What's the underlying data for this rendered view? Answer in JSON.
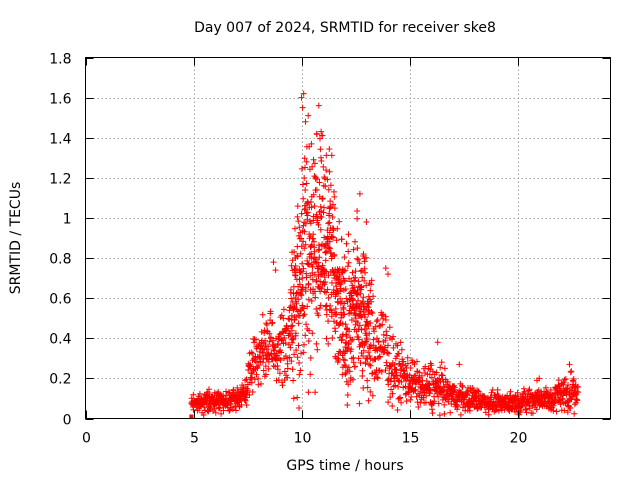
{
  "chart_data": {
    "type": "scatter",
    "title": "Day 007 of 2024, SRMTID for receiver ske8",
    "xlabel": "GPS time / hours",
    "ylabel": "SRMTID / TECUs",
    "xlim": [
      0,
      24.3
    ],
    "ylim": [
      0,
      1.8
    ],
    "xticks": [
      0,
      5,
      10,
      15,
      20
    ],
    "yticks": [
      0,
      0.2,
      0.4,
      0.6,
      0.8,
      1,
      1.2,
      1.4,
      1.6,
      1.8
    ],
    "ytick_labels": [
      "0",
      "0.2",
      "0.4",
      "0.6",
      "0.8",
      "1",
      "1.2",
      "1.4",
      "1.6",
      "1.8"
    ],
    "grid": true,
    "marker": "plus",
    "color": "#ff0000",
    "series": [
      {
        "name": "SRMTID",
        "note": "approximate envelope of the plotted points (hours, TECU); each gives [x, median, spread]",
        "x_range": [
          4.9,
          22.8
        ],
        "profile": [
          [
            4.9,
            0.08,
            0.03
          ],
          [
            5.5,
            0.08,
            0.04
          ],
          [
            6.0,
            0.09,
            0.04
          ],
          [
            6.5,
            0.09,
            0.04
          ],
          [
            7.0,
            0.1,
            0.04
          ],
          [
            7.4,
            0.13,
            0.06
          ],
          [
            7.8,
            0.3,
            0.12
          ],
          [
            8.2,
            0.33,
            0.12
          ],
          [
            8.6,
            0.36,
            0.14
          ],
          [
            8.9,
            0.32,
            0.14
          ],
          [
            9.3,
            0.38,
            0.16
          ],
          [
            9.7,
            0.55,
            0.3
          ],
          [
            10.0,
            0.75,
            0.45
          ],
          [
            10.3,
            0.9,
            0.5
          ],
          [
            10.7,
            0.85,
            0.45
          ],
          [
            11.0,
            0.9,
            0.4
          ],
          [
            11.4,
            0.8,
            0.35
          ],
          [
            11.8,
            0.55,
            0.3
          ],
          [
            12.2,
            0.5,
            0.3
          ],
          [
            12.6,
            0.6,
            0.35
          ],
          [
            13.0,
            0.45,
            0.3
          ],
          [
            13.4,
            0.35,
            0.2
          ],
          [
            13.8,
            0.35,
            0.2
          ],
          [
            14.2,
            0.25,
            0.12
          ],
          [
            14.6,
            0.22,
            0.12
          ],
          [
            15.0,
            0.2,
            0.1
          ],
          [
            15.5,
            0.15,
            0.08
          ],
          [
            16.0,
            0.16,
            0.1
          ],
          [
            16.5,
            0.15,
            0.09
          ],
          [
            17.0,
            0.11,
            0.06
          ],
          [
            17.5,
            0.1,
            0.05
          ],
          [
            18.0,
            0.1,
            0.05
          ],
          [
            18.5,
            0.08,
            0.04
          ],
          [
            19.0,
            0.08,
            0.04
          ],
          [
            19.5,
            0.08,
            0.04
          ],
          [
            20.0,
            0.08,
            0.04
          ],
          [
            20.5,
            0.09,
            0.05
          ],
          [
            21.0,
            0.1,
            0.05
          ],
          [
            21.5,
            0.09,
            0.05
          ],
          [
            22.0,
            0.12,
            0.07
          ],
          [
            22.5,
            0.14,
            0.08
          ],
          [
            22.8,
            0.1,
            0.05
          ]
        ],
        "peaks": [
          [
            10.0,
            1.6
          ],
          [
            10.1,
            1.62
          ],
          [
            10.05,
            1.55
          ],
          [
            10.8,
            1.56
          ],
          [
            10.7,
            1.42
          ],
          [
            10.9,
            1.3
          ],
          [
            11.3,
            1.23
          ],
          [
            11.5,
            1.13
          ],
          [
            12.7,
            1.12
          ],
          [
            13.0,
            0.98
          ],
          [
            8.7,
            0.78
          ],
          [
            8.8,
            0.74
          ],
          [
            13.9,
            0.75
          ],
          [
            14.0,
            0.72
          ],
          [
            16.3,
            0.38
          ],
          [
            17.3,
            0.27
          ],
          [
            22.4,
            0.27
          ],
          [
            21.0,
            0.2
          ],
          [
            20.9,
            0.19
          ]
        ]
      }
    ]
  }
}
